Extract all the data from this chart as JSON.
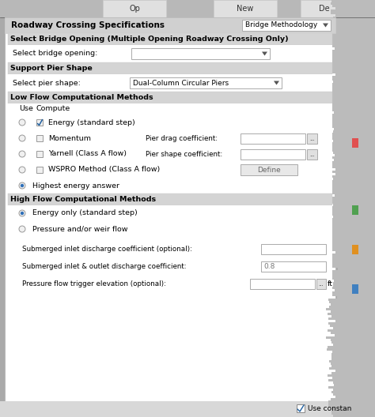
{
  "title_bar_text": "Roadway Crossing Specifications",
  "dropdown_bridge": "Bridge Methodology",
  "section1_title": "Select Bridge Opening (Multiple Opening Roadway Crossing Only)",
  "label_bridge_opening": "Select bridge opening:",
  "section2_title": "Support Pier Shape",
  "label_pier_shape": "Select pier shape:",
  "dropdown_pier": "Dual-Column Circular Piers",
  "section3_title": "Low Flow Computational Methods",
  "col_use": "Use",
  "col_compute": "Compute",
  "low_flow_rows": [
    {
      "radio": false,
      "checked": true,
      "label": "Energy (standard step)",
      "right_label": "",
      "right_field": false,
      "button": false
    },
    {
      "radio": false,
      "checked": false,
      "label": "Momentum",
      "right_label": "Pier drag coefficient:",
      "right_field": true,
      "button": false
    },
    {
      "radio": false,
      "checked": false,
      "label": "Yarnell (Class A flow)",
      "right_label": "Pier shape coefficient:",
      "right_field": true,
      "button": false
    },
    {
      "radio": false,
      "checked": false,
      "label": "WSPRO Method (Class A flow)",
      "right_label": "",
      "right_field": false,
      "button": true
    },
    {
      "radio": true,
      "checked": false,
      "label": "Highest energy answer",
      "right_label": "",
      "right_field": false,
      "button": false
    }
  ],
  "section4_title": "High Flow Computational Methods",
  "high_flow_rows": [
    {
      "radio": true,
      "label": "Energy only (standard step)"
    },
    {
      "radio": false,
      "label": "Pressure and/or weir flow"
    }
  ],
  "submerged_labels": [
    "Submerged inlet discharge coefficient (optional):",
    "Submerged inlet & outlet discharge coefficient:",
    "Pressure flow trigger elevation (optional):"
  ],
  "submerged_values": [
    "",
    "0.8",
    ""
  ],
  "submerged_units": [
    "",
    "",
    "ft"
  ],
  "bottom_checkbox_label": "Use constan",
  "tab_labels": [
    "Op",
    "New",
    "De"
  ],
  "outer_bg": "#aaaaaa",
  "panel_bg": "#ffffff",
  "section_bg": "#d4d4d4",
  "title_bar_bg": "#d0d0d0"
}
